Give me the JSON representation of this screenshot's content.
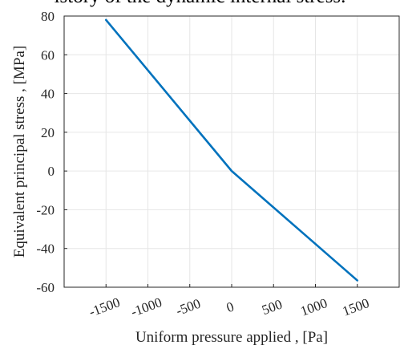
{
  "caption_fragment": "istory of the dynamic internal stress.",
  "chart_data": {
    "type": "line",
    "xlabel": "Uniform pressure applied , [Pa]",
    "ylabel": "Equivalent principal stress , [MPa]",
    "xlim": [
      -2000,
      2000
    ],
    "ylim": [
      -60,
      80
    ],
    "x_ticks": [
      -1500,
      -1000,
      -500,
      0,
      500,
      1000,
      1500
    ],
    "x_tick_labels": [
      "-1500",
      "-1000",
      "-500",
      "0",
      "500",
      "1000",
      "1500"
    ],
    "y_ticks": [
      -60,
      -40,
      -20,
      0,
      20,
      40,
      60,
      80
    ],
    "y_tick_labels": [
      "-60",
      "-40",
      "-20",
      "0",
      "20",
      "40",
      "60",
      "80"
    ],
    "grid": true,
    "series": [
      {
        "color": "#0072BD",
        "x": [
          -1500,
          0,
          1500
        ],
        "y": [
          78,
          0,
          -56.5
        ]
      }
    ]
  }
}
